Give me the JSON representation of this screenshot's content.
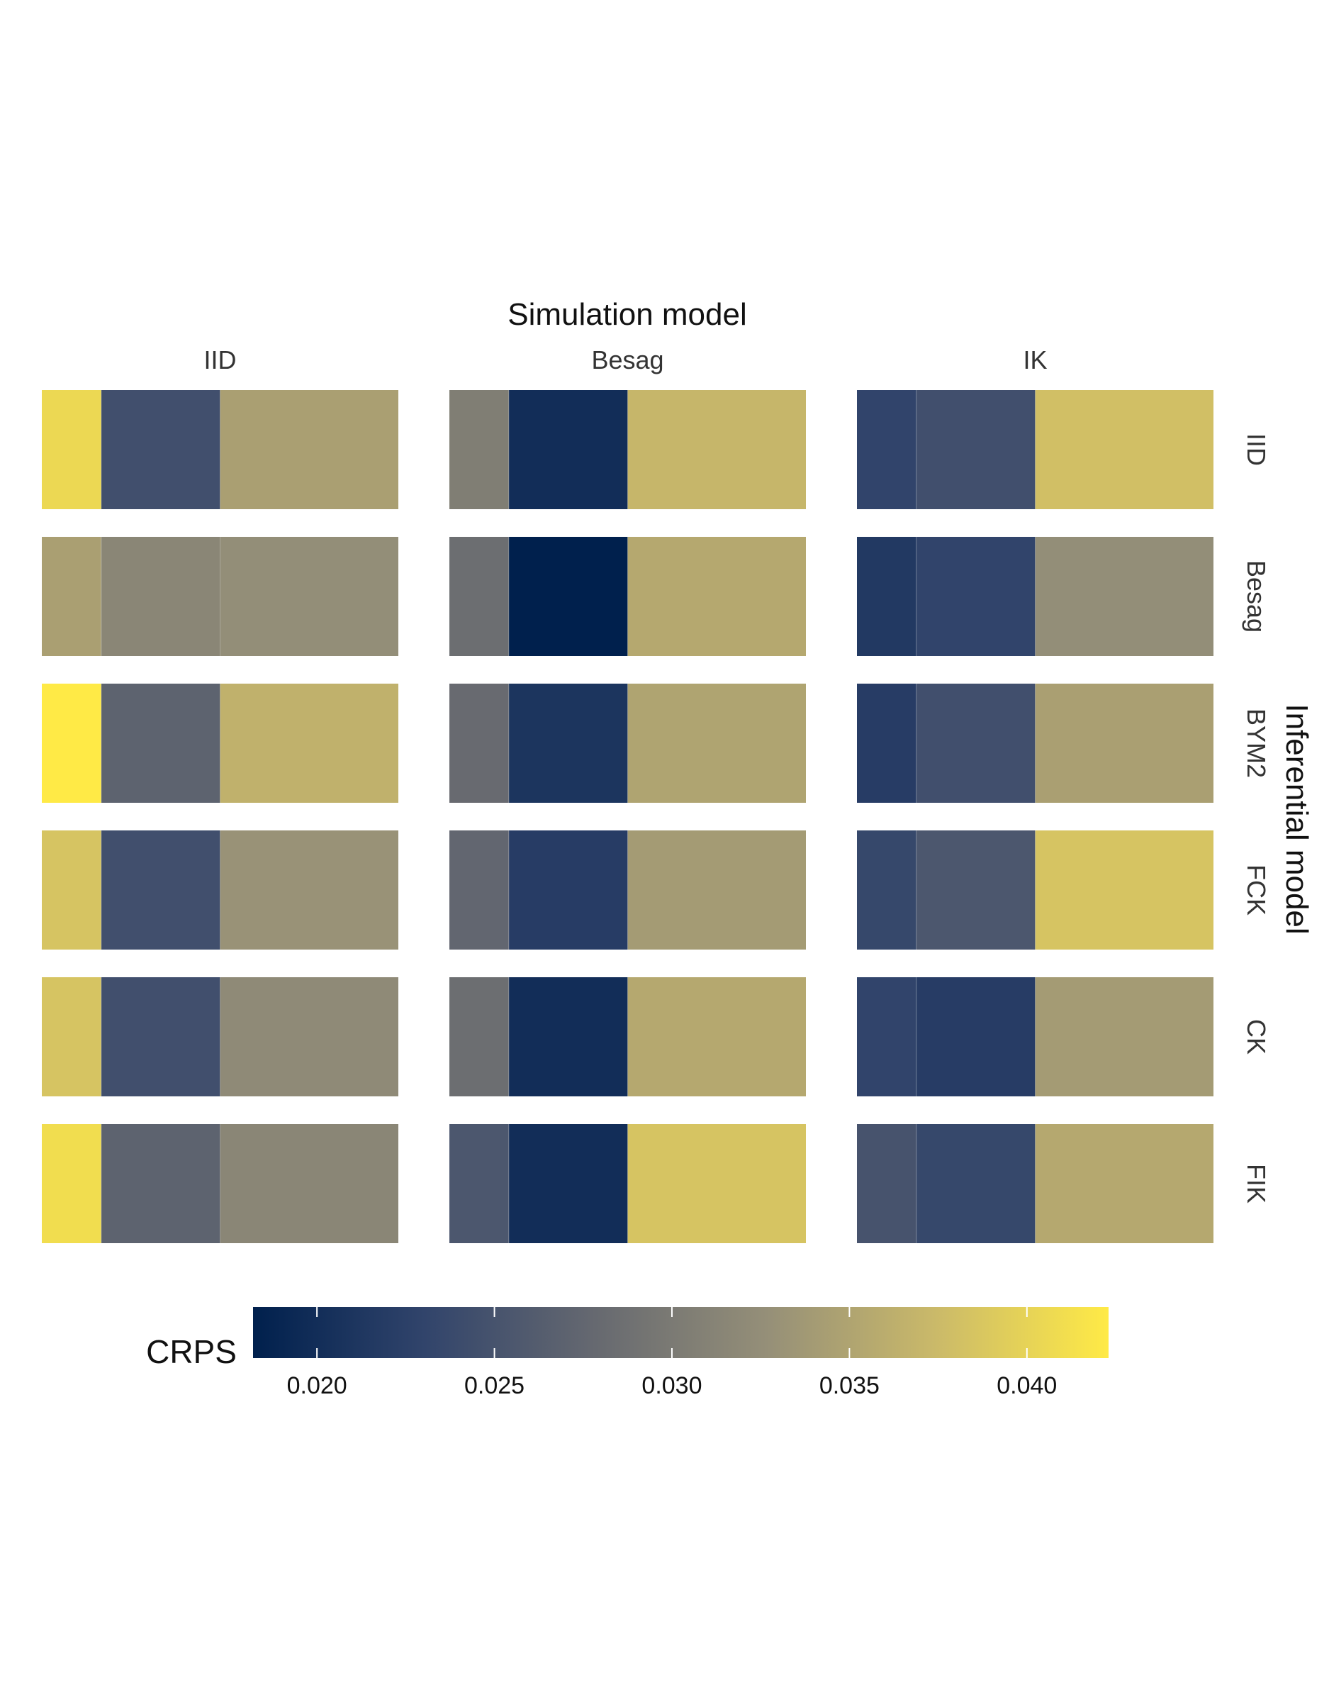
{
  "chart_data": {
    "type": "heatmap",
    "facet_col_title": "Simulation model",
    "facet_row_title": "Inferential model",
    "columns": [
      "IID",
      "Besag",
      "IK"
    ],
    "rows": [
      "IID",
      "Besag",
      "BYM2",
      "FCK",
      "CK",
      "FIK"
    ],
    "cells_per_panel": 3,
    "cell_widths_relative": [
      1,
      2,
      3
    ],
    "values": [
      [
        [
          0.0405,
          0.0245,
          0.0345
        ],
        [
          0.0305,
          0.02,
          0.037
        ],
        [
          0.023,
          0.0245,
          0.038
        ]
      ],
      [
        [
          0.0345,
          0.0315,
          0.0325
        ],
        [
          0.0285,
          0.018,
          0.0355
        ],
        [
          0.0215,
          0.023,
          0.0325
        ]
      ],
      [
        [
          0.0425,
          0.027,
          0.0365
        ],
        [
          0.028,
          0.021,
          0.035
        ],
        [
          0.022,
          0.0245,
          0.0345
        ]
      ],
      [
        [
          0.0385,
          0.0245,
          0.033
        ],
        [
          0.0275,
          0.022,
          0.034
        ],
        [
          0.0235,
          0.0255,
          0.0385
        ]
      ],
      [
        [
          0.0385,
          0.0245,
          0.032
        ],
        [
          0.0285,
          0.02,
          0.0355
        ],
        [
          0.023,
          0.022,
          0.034
        ]
      ],
      [
        [
          0.041,
          0.027,
          0.0315
        ],
        [
          0.0255,
          0.02,
          0.0385
        ],
        [
          0.025,
          0.0235,
          0.0355
        ]
      ]
    ],
    "colorbar": {
      "title": "CRPS",
      "range": [
        0.0182,
        0.0423
      ],
      "ticks": [
        0.02,
        0.025,
        0.03,
        0.035,
        0.04
      ],
      "tick_labels": [
        "0.020",
        "0.025",
        "0.030",
        "0.035",
        "0.040"
      ],
      "colorscale": [
        "#00204d",
        "#31446b",
        "#666970",
        "#958f78",
        "#cbba69",
        "#ffea46"
      ]
    }
  }
}
